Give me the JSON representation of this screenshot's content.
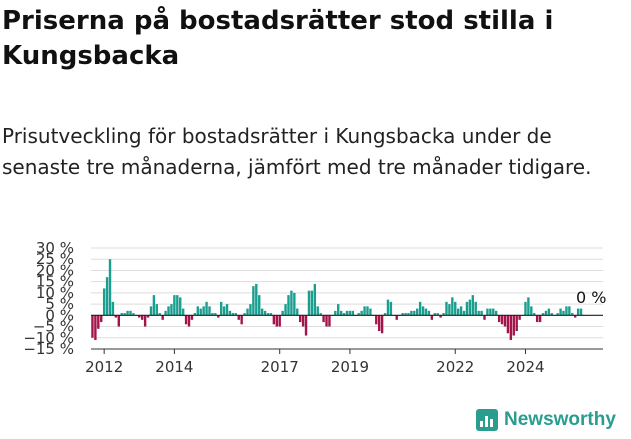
{
  "title": "Priserna på bostadsrätter stod stilla i Kungsbacka",
  "subtitle": "Prisutveckling för bostadsrätter i Kungsbacka under de senaste tre månaderna, jämfört med tre månader tidigare.",
  "brand": {
    "name": "Newsworthy",
    "icon": "bar-chart-icon"
  },
  "colors": {
    "positive": "#1a9e8f",
    "negative": "#a3154a",
    "grid": "#dddddd",
    "axis": "#333333"
  },
  "chart_data": {
    "type": "bar",
    "x_start": "2011-09",
    "x_step": "month",
    "ylim": [
      -15,
      30
    ],
    "yticks": [
      "30 %",
      "25 %",
      "20 %",
      "15 %",
      "10 %",
      "5 %",
      "0 %",
      "−5 %",
      "−10 %",
      "−15 %"
    ],
    "ytick_values": [
      30,
      25,
      20,
      15,
      10,
      5,
      0,
      -5,
      -10,
      -15
    ],
    "xticks": [
      "2012",
      "2014",
      "2017",
      "2019",
      "2022",
      "2024"
    ],
    "xtick_dates": [
      "2012-01",
      "2014-01",
      "2017-01",
      "2019-01",
      "2022-01",
      "2024-01"
    ],
    "grid": true,
    "last_value_label": "0 %",
    "values": [
      -10,
      -11,
      -6,
      -3,
      12,
      17,
      25,
      6,
      -1,
      -5,
      1,
      1,
      2,
      2,
      1,
      0,
      -1,
      -2,
      -5,
      -1,
      4,
      9,
      5,
      1,
      -2,
      2,
      4,
      5,
      9,
      9,
      8,
      3,
      -4,
      -5,
      -2,
      1,
      4,
      3,
      4,
      6,
      4,
      1,
      1,
      -1,
      6,
      4,
      5,
      2,
      1,
      1,
      -2,
      -4,
      1,
      3,
      5,
      13,
      14,
      9,
      3,
      2,
      1,
      1,
      -4,
      -5,
      -5,
      2,
      5,
      9,
      11,
      10,
      3,
      -3,
      -5,
      -9,
      11,
      11,
      14,
      4,
      1,
      -3,
      -5,
      -5,
      0,
      2,
      5,
      2,
      1,
      2,
      2,
      2,
      0,
      1,
      2,
      4,
      4,
      3,
      0,
      -4,
      -7,
      -8,
      1,
      7,
      6,
      0,
      -2,
      0,
      1,
      1,
      1,
      2,
      2,
      3,
      6,
      4,
      3,
      2,
      -2,
      1,
      1,
      -1,
      1,
      6,
      5,
      8,
      6,
      3,
      4,
      2,
      6,
      7,
      9,
      6,
      2,
      2,
      -2,
      3,
      3,
      3,
      2,
      -3,
      -4,
      -5,
      -8,
      -11,
      -9,
      -7,
      -2,
      0,
      6,
      8,
      4,
      1,
      -3,
      -3,
      1,
      2,
      3,
      1,
      0,
      1,
      3,
      2,
      4,
      4,
      1,
      -1,
      3,
      3,
      0
    ]
  }
}
